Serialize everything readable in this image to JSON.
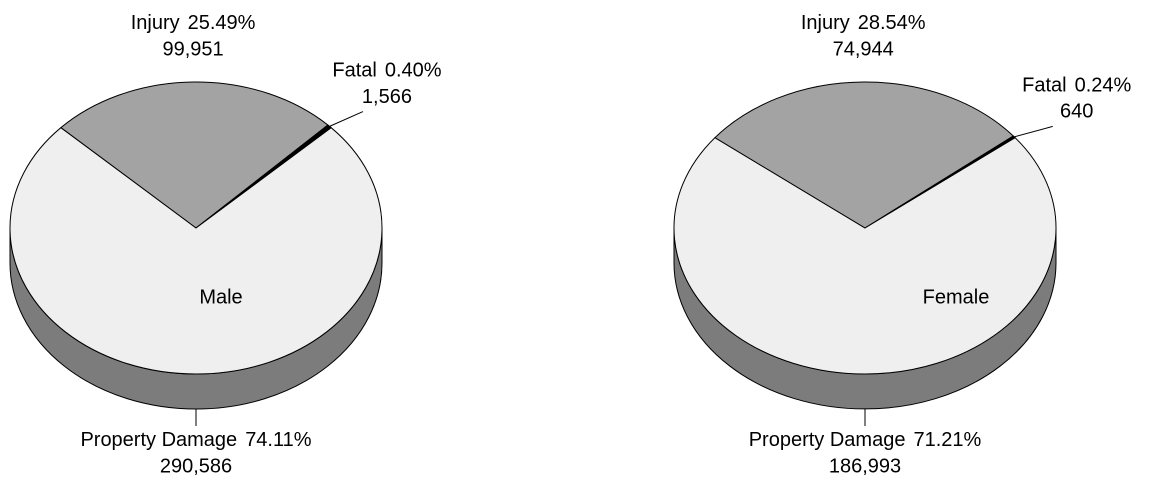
{
  "chart_data": [
    {
      "type": "pie",
      "title": "Male",
      "categories": [
        "Injury",
        "Fatal",
        "Property Damage"
      ],
      "values": [
        25.49,
        0.4,
        74.11
      ],
      "value_labels": [
        "25.49%",
        "0.40%",
        "74.11%"
      ],
      "counts": [
        99951,
        1566,
        290586
      ],
      "count_labels": [
        "99,951",
        "1,566",
        "290,586"
      ],
      "colors": [
        "#a3a3a3",
        "#000000",
        "#efefef"
      ]
    },
    {
      "type": "pie",
      "title": "Female",
      "categories": [
        "Injury",
        "Fatal",
        "Property Damage"
      ],
      "values": [
        28.54,
        0.24,
        71.21
      ],
      "value_labels": [
        "28.54%",
        "0.24%",
        "71.21%"
      ],
      "counts": [
        74944,
        640,
        186993
      ],
      "count_labels": [
        "74,944",
        "640",
        "186,993"
      ],
      "colors": [
        "#a3a3a3",
        "#000000",
        "#efefef"
      ]
    }
  ]
}
